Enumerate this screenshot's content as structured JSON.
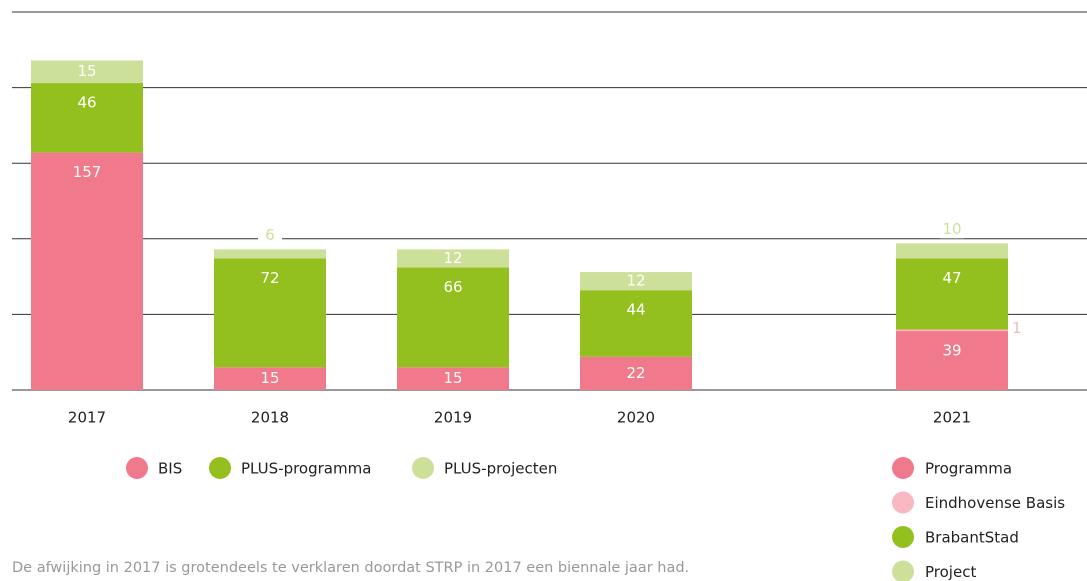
{
  "chart_data": [
    {
      "type": "bar",
      "stacked": true,
      "categories": [
        "2017",
        "2018",
        "2019",
        "2020"
      ],
      "series": [
        {
          "name": "BIS",
          "color": "#f07a8c",
          "values": [
            157,
            15,
            15,
            22
          ]
        },
        {
          "name": "PLUS-programma",
          "color": "#93c01f",
          "values": [
            46,
            72,
            66,
            44
          ]
        },
        {
          "name": "PLUS-projecten",
          "color": "#cde09a",
          "values": [
            15,
            6,
            12,
            12
          ]
        }
      ],
      "ylim": [
        0,
        250
      ],
      "yticks": [
        0,
        50,
        100,
        150,
        200,
        250
      ],
      "grid": true,
      "annotation": "De afwijking in 2017 is grotendeels te verklaren doordat STRP in 2017 een biennale jaar had."
    },
    {
      "type": "bar",
      "stacked": true,
      "categories": [
        "2021"
      ],
      "series": [
        {
          "name": "Programma",
          "color": "#f07a8c",
          "values": [
            39
          ]
        },
        {
          "name": "Eindhovense Basis",
          "color": "#f7b8c2",
          "values": [
            1
          ]
        },
        {
          "name": "BrabantStad",
          "color": "#93c01f",
          "values": [
            47
          ]
        },
        {
          "name": "Project",
          "color": "#cde09a",
          "values": [
            10
          ]
        }
      ],
      "ylim": [
        0,
        250
      ]
    }
  ]
}
